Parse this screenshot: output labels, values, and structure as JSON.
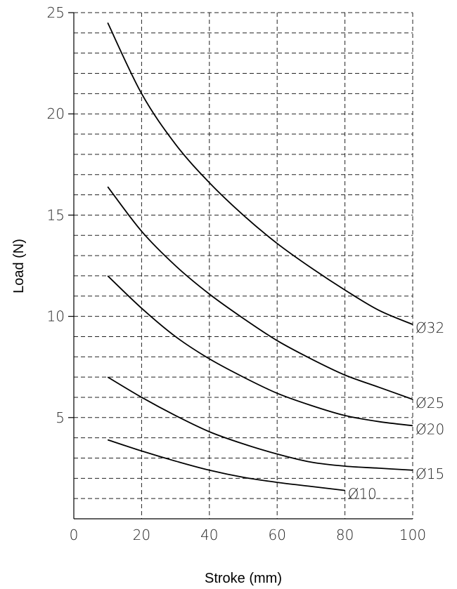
{
  "chart_data": {
    "type": "line",
    "xlabel": "Stroke (mm)",
    "ylabel": "Load (N)",
    "xlim": [
      0,
      100
    ],
    "ylim": [
      0,
      25
    ],
    "x_ticks": [
      0,
      20,
      40,
      60,
      80,
      100
    ],
    "y_ticks": [
      5,
      10,
      15,
      20,
      25
    ],
    "grid": true,
    "grid_style": "dashed",
    "y_grid_step": 1,
    "x_grid_step": 20,
    "series": [
      {
        "name": "Ø32",
        "x": [
          10,
          20,
          30,
          40,
          50,
          60,
          70,
          80,
          90,
          100
        ],
        "y": [
          24.5,
          21.0,
          18.5,
          16.6,
          15.0,
          13.6,
          12.4,
          11.3,
          10.3,
          9.6
        ]
      },
      {
        "name": "Ø25",
        "x": [
          10,
          20,
          30,
          40,
          50,
          60,
          70,
          80,
          90,
          100
        ],
        "y": [
          16.4,
          14.2,
          12.5,
          11.1,
          9.9,
          8.8,
          7.9,
          7.1,
          6.5,
          5.9
        ]
      },
      {
        "name": "Ø20",
        "x": [
          10,
          20,
          30,
          40,
          50,
          60,
          70,
          80,
          90,
          100
        ],
        "y": [
          12.0,
          10.4,
          9.0,
          7.9,
          7.0,
          6.2,
          5.6,
          5.1,
          4.8,
          4.6
        ]
      },
      {
        "name": "Ø15",
        "x": [
          10,
          20,
          30,
          40,
          50,
          60,
          70,
          80,
          90,
          100
        ],
        "y": [
          7.0,
          6.0,
          5.1,
          4.3,
          3.7,
          3.2,
          2.8,
          2.6,
          2.5,
          2.4
        ]
      },
      {
        "name": "Ø10",
        "x": [
          10,
          20,
          30,
          40,
          50,
          60,
          70,
          80
        ],
        "y": [
          3.9,
          3.35,
          2.85,
          2.4,
          2.05,
          1.8,
          1.6,
          1.4
        ]
      }
    ]
  },
  "colors": {
    "line": "#000000",
    "grid": "#222222",
    "background": "#ffffff"
  }
}
